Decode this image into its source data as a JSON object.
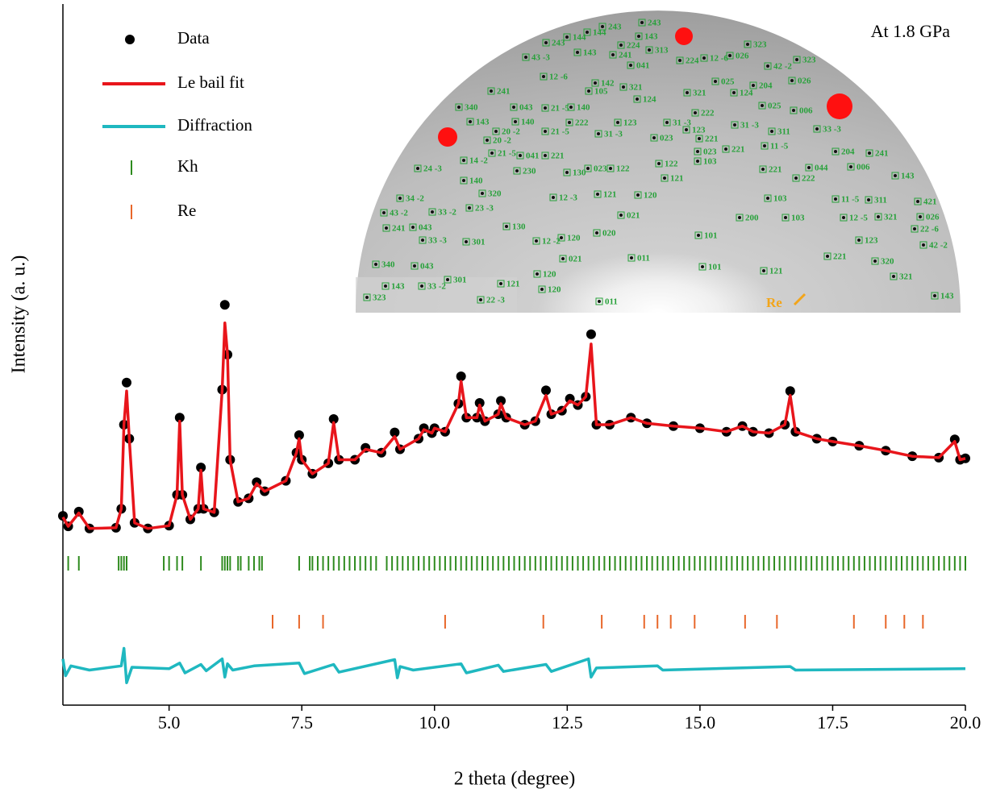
{
  "chart_data": {
    "type": "line",
    "xlabel": "2 theta (degree)",
    "ylabel": "Intensity (a. u.)",
    "xlim": [
      3.0,
      20.0
    ],
    "xticks": [
      {
        "value": 5,
        "label": "5.0"
      },
      {
        "value": 7.5,
        "label": "7.5"
      },
      {
        "value": 10,
        "label": "10.0"
      },
      {
        "value": 12.5,
        "label": "12.5"
      },
      {
        "value": 15,
        "label": "15.0"
      },
      {
        "value": 17.5,
        "label": "17.5"
      },
      {
        "value": 20,
        "label": "20.0"
      }
    ],
    "ylim": [
      0,
      100
    ],
    "series": [
      {
        "name": "Data",
        "color": "#000000",
        "style": "points",
        "x": [
          3.0,
          3.1,
          3.3,
          3.5,
          4.0,
          4.1,
          4.15,
          4.2,
          4.25,
          4.35,
          4.6,
          5.0,
          5.15,
          5.2,
          5.25,
          5.4,
          5.55,
          5.6,
          5.65,
          5.85,
          6.0,
          6.05,
          6.1,
          6.15,
          6.3,
          6.5,
          6.65,
          6.8,
          7.2,
          7.4,
          7.45,
          7.5,
          7.7,
          8.0,
          8.1,
          8.2,
          8.5,
          8.7,
          9.0,
          9.25,
          9.35,
          9.7,
          9.8,
          9.95,
          10.0,
          10.2,
          10.45,
          10.5,
          10.6,
          10.8,
          10.85,
          10.95,
          11.2,
          11.25,
          11.35,
          11.7,
          11.9,
          12.1,
          12.2,
          12.4,
          12.55,
          12.7,
          12.85,
          12.95,
          13.05,
          13.3,
          13.7,
          14.0,
          14.5,
          15.0,
          15.5,
          15.8,
          16.0,
          16.3,
          16.6,
          16.7,
          16.8,
          17.2,
          17.5,
          18.0,
          18.5,
          19.0,
          19.5,
          19.8,
          19.9,
          20.0
        ],
        "values": [
          27.0,
          25.5,
          27.6,
          25.2,
          25.3,
          28.0,
          40.0,
          46.0,
          38.0,
          26.0,
          25.2,
          25.6,
          30.0,
          41.0,
          30.0,
          26.5,
          28.0,
          33.9,
          28.0,
          27.5,
          45.0,
          57.1,
          50.0,
          35.0,
          29.0,
          29.5,
          31.8,
          30.5,
          32.0,
          36.0,
          38.5,
          35.0,
          33.0,
          34.5,
          40.8,
          35.0,
          35.0,
          36.7,
          36.0,
          38.9,
          36.5,
          38.0,
          39.5,
          38.8,
          39.5,
          39.0,
          43.0,
          46.9,
          41.0,
          41.0,
          43.1,
          40.5,
          41.5,
          43.4,
          41.0,
          40.0,
          40.5,
          44.9,
          41.5,
          42.0,
          43.7,
          42.8,
          44.0,
          52.9,
          40.0,
          40.0,
          41.0,
          40.2,
          39.8,
          39.5,
          39.0,
          39.8,
          39.0,
          38.8,
          40.0,
          44.8,
          39.0,
          38.0,
          37.6,
          37.0,
          36.3,
          35.5,
          35.3,
          37.9,
          35.0,
          35.2
        ]
      },
      {
        "name": "Le bail fit",
        "color": "#e8151b",
        "style": "line",
        "x": [
          3.0,
          3.1,
          3.3,
          3.5,
          4.0,
          4.1,
          4.15,
          4.2,
          4.25,
          4.35,
          4.6,
          5.0,
          5.15,
          5.2,
          5.25,
          5.4,
          5.55,
          5.6,
          5.65,
          5.85,
          6.0,
          6.05,
          6.1,
          6.15,
          6.3,
          6.5,
          6.65,
          6.8,
          7.2,
          7.4,
          7.45,
          7.5,
          7.7,
          8.0,
          8.1,
          8.2,
          8.5,
          8.7,
          9.0,
          9.25,
          9.35,
          9.7,
          9.8,
          9.95,
          10.0,
          10.2,
          10.45,
          10.5,
          10.6,
          10.8,
          10.85,
          10.95,
          11.2,
          11.25,
          11.35,
          11.7,
          11.9,
          12.1,
          12.2,
          12.4,
          12.55,
          12.7,
          12.85,
          12.95,
          13.05,
          13.3,
          13.7,
          14.0,
          14.5,
          15.0,
          15.5,
          15.8,
          16.0,
          16.3,
          16.6,
          16.7,
          16.8,
          17.2,
          17.5,
          18.0,
          18.5,
          19.0,
          19.5,
          19.8,
          19.9,
          20.0
        ],
        "values": [
          26.8,
          25.5,
          27.4,
          25.2,
          25.3,
          28.0,
          40.0,
          44.8,
          38.0,
          26.0,
          25.2,
          25.6,
          30.0,
          40.5,
          30.0,
          26.5,
          28.0,
          33.5,
          28.0,
          27.5,
          45.0,
          54.5,
          50.0,
          35.0,
          29.0,
          29.5,
          31.6,
          30.5,
          32.0,
          36.0,
          38.0,
          35.0,
          33.0,
          34.5,
          40.3,
          35.0,
          35.0,
          36.5,
          36.0,
          38.3,
          36.5,
          38.0,
          39.3,
          38.8,
          39.5,
          39.0,
          43.0,
          46.2,
          41.0,
          41.0,
          42.8,
          40.5,
          41.5,
          43.0,
          41.0,
          40.0,
          40.5,
          44.2,
          41.5,
          42.0,
          43.4,
          42.8,
          44.0,
          51.5,
          40.0,
          40.0,
          41.0,
          40.2,
          39.8,
          39.5,
          39.0,
          39.8,
          39.0,
          38.8,
          40.0,
          44.2,
          39.0,
          38.0,
          37.6,
          37.0,
          36.3,
          35.5,
          35.3,
          37.6,
          35.0,
          35.2
        ]
      },
      {
        "name": "Diffraction",
        "color": "#1fb8c0",
        "style": "line",
        "x": [
          3.0,
          3.05,
          3.15,
          3.5,
          4.1,
          4.15,
          4.2,
          4.3,
          5.0,
          5.2,
          5.3,
          5.6,
          5.7,
          6.0,
          6.05,
          6.1,
          6.2,
          6.6,
          7.45,
          7.55,
          8.1,
          8.2,
          9.25,
          9.3,
          9.35,
          9.6,
          10.5,
          10.6,
          11.2,
          11.3,
          12.1,
          12.2,
          12.9,
          12.95,
          13.05,
          14.2,
          14.3,
          16.7,
          16.8,
          20.0
        ],
        "values": [
          6.6,
          4.2,
          5.6,
          5.0,
          5.6,
          8.1,
          3.2,
          5.4,
          5.2,
          6.0,
          4.6,
          5.8,
          4.9,
          6.6,
          4.0,
          5.9,
          5.0,
          5.6,
          6.0,
          4.5,
          5.8,
          4.7,
          6.5,
          3.9,
          5.5,
          5.0,
          5.9,
          4.6,
          5.7,
          4.8,
          5.8,
          4.8,
          6.6,
          4.0,
          5.3,
          5.6,
          5.0,
          5.5,
          5.0,
          5.2
        ]
      },
      {
        "name": "Kh",
        "color": "#2e8b1e",
        "style": "ticks",
        "x": [
          3.1,
          3.3,
          4.05,
          4.1,
          4.15,
          4.2,
          4.9,
          5.0,
          5.15,
          5.25,
          5.6,
          6.0,
          6.05,
          6.1,
          6.15,
          6.3,
          6.35,
          6.5,
          6.6,
          6.7,
          6.75,
          7.45,
          7.65,
          7.7,
          7.8,
          7.9,
          8.0,
          8.1,
          8.2,
          8.3,
          8.4,
          8.5,
          8.6,
          8.7,
          8.8,
          8.9,
          9.1,
          9.2,
          9.3,
          9.4,
          9.5,
          9.6,
          9.7,
          9.8,
          9.9,
          10.0,
          10.1,
          10.2,
          10.3,
          10.4,
          10.5,
          10.6,
          10.7,
          10.8,
          10.9,
          11.0,
          11.1,
          11.2,
          11.3,
          11.4,
          11.5,
          11.6,
          11.7,
          11.8,
          11.9,
          12.0,
          12.1,
          12.2,
          12.3,
          12.4,
          12.5,
          12.6,
          12.7,
          12.8,
          12.9,
          13.0,
          13.1,
          13.2,
          13.3,
          13.4,
          13.5,
          13.6,
          13.7,
          13.8,
          13.9,
          14.0,
          14.1,
          14.2,
          14.3,
          14.4,
          14.5,
          14.6,
          14.7,
          14.8,
          14.9,
          15.0,
          15.1,
          15.2,
          15.3,
          15.4,
          15.5,
          15.6,
          15.7,
          15.8,
          15.9,
          16.0,
          16.1,
          16.2,
          16.3,
          16.4,
          16.5,
          16.6,
          16.7,
          16.8,
          16.9,
          17.0,
          17.1,
          17.2,
          17.3,
          17.4,
          17.5,
          17.6,
          17.7,
          17.8,
          17.9,
          18.0,
          18.1,
          18.2,
          18.3,
          18.4,
          18.5,
          18.6,
          18.7,
          18.8,
          18.9,
          19.0,
          19.1,
          19.2,
          19.3,
          19.4,
          19.5,
          19.6,
          19.7,
          19.8,
          19.9,
          20.0
        ]
      },
      {
        "name": "Re",
        "color": "#e8672a",
        "style": "ticks",
        "x": [
          6.95,
          7.45,
          7.9,
          10.2,
          12.05,
          13.15,
          13.95,
          14.2,
          14.45,
          14.9,
          15.85,
          16.45,
          17.9,
          18.5,
          18.85,
          19.2
        ]
      }
    ],
    "inset": {
      "annotation": "At 1.8 GPa",
      "marker": "Re",
      "reflections": [
        "243",
        "144",
        "144",
        "243",
        "243",
        "224",
        "143",
        "313",
        "224",
        "12 -6",
        "026",
        "323",
        "42 -2",
        "323",
        "026",
        "43 -3",
        "12 -6",
        "143",
        "142",
        "241",
        "041",
        "105",
        "321",
        "124",
        "321",
        "025",
        "204",
        "124",
        "025",
        "006",
        "33 -3",
        "340",
        "143",
        "20 -2",
        "241",
        "043",
        "140",
        "21 -5",
        "140",
        "222",
        "21 -5",
        "31 -3",
        "123",
        "31 -3",
        "222",
        "123",
        "31 -3",
        "311",
        "11 -5",
        "221",
        "023",
        "023",
        "103",
        "221",
        "20 -2",
        "21 -5",
        "041",
        "14 -2",
        "230",
        "221",
        "130",
        "023",
        "122",
        "122",
        "121",
        "204",
        "241",
        "006",
        "044",
        "222",
        "221",
        "143",
        "24 -3",
        "140",
        "320",
        "12 -3",
        "121",
        "120",
        "021",
        "34 -2",
        "33 -2",
        "23 -3",
        "43 -2",
        "103",
        "11 -5",
        "311",
        "421",
        "200",
        "103",
        "12 -5",
        "321",
        "026",
        "22 -6",
        "130",
        "241",
        "043",
        "33 -3",
        "301",
        "12 -2",
        "120",
        "020",
        "123",
        "42 -2",
        "021",
        "011",
        "101",
        "101",
        "221",
        "320",
        "121",
        "321",
        "340",
        "043",
        "120",
        "301",
        "143",
        "33 -2",
        "121",
        "120",
        "323",
        "22 -3",
        "011",
        "143"
      ]
    }
  }
}
